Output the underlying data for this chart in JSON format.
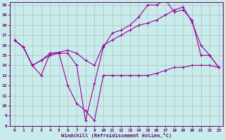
{
  "xlabel": "Windchill (Refroidissement éolien,°C)",
  "background_color": "#c8ecec",
  "line_color": "#990099",
  "grid_color": "#b0b0b0",
  "xmin": 0,
  "xmax": 23,
  "ymin": 8,
  "ymax": 20,
  "line1_x": [
    0,
    1,
    2,
    3,
    4,
    5,
    6,
    7,
    8,
    9,
    10,
    11,
    12,
    13,
    14,
    15,
    16,
    17,
    18,
    19,
    20,
    21,
    22,
    23
  ],
  "line1_y": [
    16.5,
    15.8,
    14.0,
    13.0,
    15.2,
    15.2,
    12.0,
    10.2,
    9.5,
    8.5,
    13.0,
    13.0,
    13.0,
    13.0,
    13.0,
    13.0,
    13.2,
    13.5,
    13.8,
    13.8,
    14.0,
    14.0,
    14.0,
    13.8
  ],
  "line2_x": [
    0,
    1,
    2,
    3,
    4,
    5,
    6,
    7,
    8,
    9,
    10,
    11,
    12,
    13,
    14,
    15,
    16,
    17,
    18,
    19,
    20,
    21,
    22,
    23
  ],
  "line2_y": [
    16.5,
    15.8,
    14.0,
    14.5,
    15.0,
    15.2,
    15.2,
    14.0,
    8.5,
    12.2,
    15.8,
    17.2,
    17.5,
    18.0,
    18.8,
    20.0,
    20.0,
    20.5,
    19.3,
    19.5,
    18.5,
    15.0,
    15.0,
    13.8
  ],
  "line3_x": [
    0,
    1,
    2,
    3,
    4,
    5,
    6,
    7,
    8,
    9,
    10,
    11,
    12,
    13,
    14,
    15,
    16,
    17,
    18,
    19,
    20,
    21,
    22,
    23
  ],
  "line3_y": [
    16.5,
    15.8,
    14.0,
    14.5,
    15.2,
    15.3,
    15.5,
    15.2,
    14.5,
    14.0,
    16.0,
    16.5,
    17.0,
    17.5,
    18.0,
    18.2,
    18.5,
    19.0,
    19.5,
    19.8,
    18.3,
    16.0,
    15.0,
    13.8
  ]
}
